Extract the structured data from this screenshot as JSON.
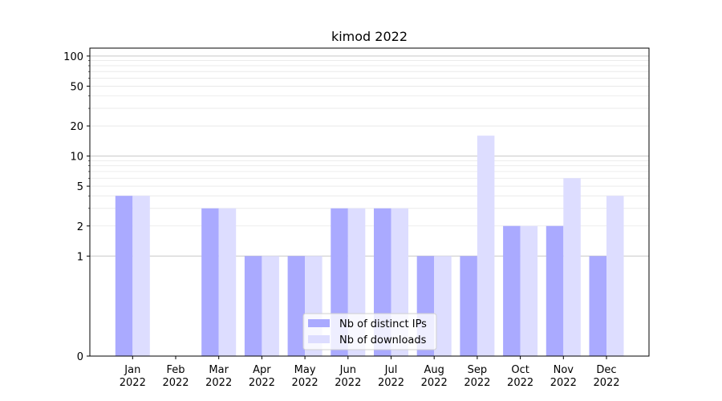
{
  "chart_data": {
    "type": "bar",
    "title": "kimod 2022",
    "xlabel": "",
    "ylabel": "",
    "yscale": "symlog",
    "ylim": [
      0,
      120
    ],
    "yticks": [
      0,
      1,
      2,
      5,
      10,
      20,
      50,
      100
    ],
    "categories": [
      [
        "Jan",
        "2022"
      ],
      [
        "Feb",
        "2022"
      ],
      [
        "Mar",
        "2022"
      ],
      [
        "Apr",
        "2022"
      ],
      [
        "May",
        "2022"
      ],
      [
        "Jun",
        "2022"
      ],
      [
        "Jul",
        "2022"
      ],
      [
        "Aug",
        "2022"
      ],
      [
        "Sep",
        "2022"
      ],
      [
        "Oct",
        "2022"
      ],
      [
        "Nov",
        "2022"
      ],
      [
        "Dec",
        "2022"
      ]
    ],
    "series": [
      {
        "name": "Nb of distinct IPs",
        "color": "#aaaaff",
        "values": [
          4,
          0,
          3,
          1,
          1,
          3,
          3,
          1,
          1,
          2,
          2,
          1
        ]
      },
      {
        "name": "Nb of downloads",
        "color": "#ddddff",
        "values": [
          4,
          0,
          3,
          1,
          1,
          3,
          3,
          1,
          16,
          2,
          6,
          4
        ]
      }
    ],
    "grid": true,
    "legend_position": "bottom-center"
  }
}
